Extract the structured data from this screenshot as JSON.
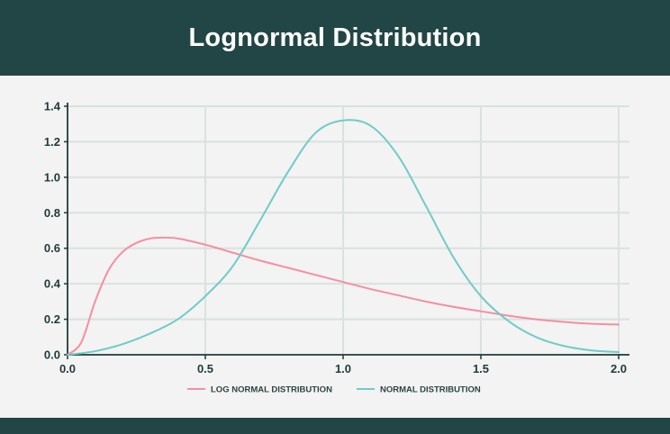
{
  "header": {
    "title": "Lognormal Distribution"
  },
  "colors": {
    "header_bg": "#224545",
    "page_bg": "#f2f3f2",
    "grid": "#d8e2df",
    "axis": "#1f3a3a",
    "lognormal": "#f58fa0",
    "normal": "#6fcbc9"
  },
  "chart_data": {
    "type": "line",
    "title": "Lognormal Distribution",
    "xlabel": "",
    "ylabel": "",
    "xlim": [
      0,
      2.0
    ],
    "ylim": [
      0,
      1.4
    ],
    "grid": true,
    "legend_position": "bottom-center",
    "x_ticks": [
      "0.0",
      "0.5",
      "1.0",
      "1.5",
      "2.0"
    ],
    "y_ticks": [
      "0.0",
      "0.2",
      "0.4",
      "0.6",
      "0.8",
      "1.0",
      "1.2",
      "1.4"
    ],
    "series": [
      {
        "name": "LOG NORMAL DISTRIBUTION",
        "color": "#f58fa0",
        "x": [
          0.0,
          0.05,
          0.1,
          0.15,
          0.2,
          0.25,
          0.3,
          0.35,
          0.4,
          0.5,
          0.6,
          0.7,
          0.8,
          0.9,
          1.0,
          1.1,
          1.2,
          1.3,
          1.4,
          1.5,
          1.6,
          1.7,
          1.8,
          1.9,
          2.0
        ],
        "y": [
          0.0,
          0.07,
          0.3,
          0.48,
          0.58,
          0.63,
          0.655,
          0.66,
          0.655,
          0.62,
          0.575,
          0.53,
          0.49,
          0.45,
          0.41,
          0.37,
          0.335,
          0.3,
          0.27,
          0.245,
          0.22,
          0.2,
          0.185,
          0.175,
          0.17
        ]
      },
      {
        "name": "NORMAL DISTRIBUTION",
        "color": "#6fcbc9",
        "x": [
          0.0,
          0.1,
          0.2,
          0.3,
          0.4,
          0.5,
          0.6,
          0.7,
          0.8,
          0.9,
          1.0,
          1.1,
          1.2,
          1.3,
          1.4,
          1.5,
          1.6,
          1.7,
          1.8,
          1.9,
          2.0
        ],
        "y": [
          0.0,
          0.02,
          0.06,
          0.12,
          0.2,
          0.33,
          0.5,
          0.76,
          1.03,
          1.25,
          1.32,
          1.29,
          1.12,
          0.84,
          0.55,
          0.33,
          0.19,
          0.1,
          0.05,
          0.025,
          0.015
        ]
      }
    ]
  }
}
